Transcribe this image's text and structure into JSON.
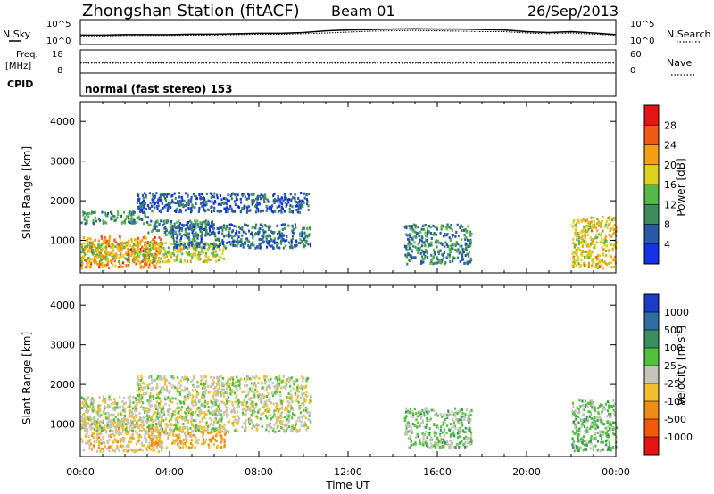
{
  "header": {
    "station": "Zhongshan Station (fitACF)",
    "beam": "Beam 01",
    "date": "26/Sep/2013"
  },
  "noise_panel": {
    "left_label": "N.Sky",
    "right_label": "N.Search",
    "right_style": "dotted",
    "left_ticks": [
      "10^5",
      "10^0"
    ],
    "right_ticks": [
      "10^5",
      "10^0"
    ]
  },
  "freq_panel": {
    "left_label_top": "Freq.",
    "left_label_unit": "[MHz]",
    "right_label": "Nave",
    "right_style": "dotted",
    "left_ticks": [
      "18",
      "8"
    ],
    "right_ticks": [
      "60",
      "0"
    ]
  },
  "cpid_panel": {
    "label": "CPID",
    "text": "normal (fast stereo) 153"
  },
  "axis": {
    "x_title": "Time UT",
    "x_ticks": [
      "00:00",
      "04:00",
      "08:00",
      "12:00",
      "16:00",
      "20:00",
      "00:00"
    ],
    "y_title": "Slant Range [km]",
    "y_ticks": [
      "1000",
      "2000",
      "3000",
      "4000"
    ]
  },
  "power_scale": {
    "title": "Power [dB]",
    "ticks": [
      "4",
      "8",
      "12",
      "16",
      "20",
      "24",
      "28"
    ],
    "colors": [
      "#1432e6",
      "#2858a8",
      "#3e8a5a",
      "#56b848",
      "#dcd21e",
      "#f5a014",
      "#ef5a14",
      "#e61414"
    ]
  },
  "velocity_scale": {
    "title": "Velocity [m s",
    "title_sup": "-1",
    "title_end": "]",
    "ticks": [
      "1000",
      "500",
      "100",
      "25",
      "-25",
      "-100",
      "-500",
      "-1000"
    ],
    "colors": [
      "#1c3cc8",
      "#2f6ea0",
      "#3a8f60",
      "#52c03c",
      "#c4c4bc",
      "#f0c030",
      "#f08c14",
      "#f05a0a",
      "#e61414"
    ]
  },
  "chart_data": {
    "type": "heatmap",
    "x_range_hours": [
      0,
      24
    ],
    "y_range_km": [
      180,
      4500
    ],
    "panels": [
      {
        "name": "Power",
        "unit": "dB",
        "zlim": [
          0,
          30
        ],
        "scatter_regions": [
          {
            "t": [
              0.0,
              3.6
            ],
            "range_km": [
              300,
              1100
            ],
            "value": 22
          },
          {
            "t": [
              0.0,
              6.4
            ],
            "range_km": [
              450,
              950
            ],
            "value": 16
          },
          {
            "t": [
              0.0,
              3.0
            ],
            "range_km": [
              1420,
              1720
            ],
            "value": 10
          },
          {
            "t": [
              3.0,
              6.0
            ],
            "range_km": [
              1100,
              1500
            ],
            "value": 8
          },
          {
            "t": [
              4.0,
              10.3
            ],
            "range_km": [
              800,
              1400
            ],
            "value": 7
          },
          {
            "t": [
              2.5,
              10.2
            ],
            "range_km": [
              1700,
              2200
            ],
            "value": 5
          },
          {
            "t": [
              14.5,
              17.5
            ],
            "range_km": [
              400,
              1400
            ],
            "value": 9
          },
          {
            "t": [
              22.0,
              24.0
            ],
            "range_km": [
              300,
              1600
            ],
            "value": 18
          }
        ]
      },
      {
        "name": "Velocity",
        "unit": "m s-1",
        "zlim": [
          -1000,
          1000
        ],
        "scatter_regions": [
          {
            "t": [
              0.0,
              3.6
            ],
            "range_km": [
              300,
              1100
            ],
            "value": -150
          },
          {
            "t": [
              3.0,
              6.5
            ],
            "range_km": [
              400,
              900
            ],
            "value": -300
          },
          {
            "t": [
              0.0,
              10.3
            ],
            "range_km": [
              800,
              1700
            ],
            "value": 0
          },
          {
            "t": [
              2.5,
              10.2
            ],
            "range_km": [
              1700,
              2200
            ],
            "value": 0
          },
          {
            "t": [
              14.5,
              17.5
            ],
            "range_km": [
              400,
              1400
            ],
            "value": 150
          },
          {
            "t": [
              22.0,
              24.0
            ],
            "range_km": [
              300,
              1600
            ],
            "value": 200
          }
        ]
      }
    ],
    "noise_sky_log10": [
      1.8,
      1.8,
      1.9,
      1.9,
      1.9,
      2.0,
      2.0,
      2.1,
      2.2,
      2.2,
      2.4,
      2.8,
      3.0,
      3.1,
      3.2,
      3.3,
      3.2,
      3.2,
      3.1,
      3.0,
      2.6,
      2.4,
      2.6,
      2.3,
      1.9
    ],
    "noise_search_log10": [
      1.6,
      1.6,
      1.7,
      1.7,
      1.7,
      1.8,
      1.8,
      1.9,
      2.0,
      2.0,
      2.1,
      2.3,
      2.5,
      2.7,
      2.8,
      2.9,
      2.8,
      2.7,
      2.6,
      2.6,
      2.3,
      2.1,
      2.3,
      2.0,
      1.8
    ],
    "freq_mhz": 12.5,
    "nave": 25
  }
}
